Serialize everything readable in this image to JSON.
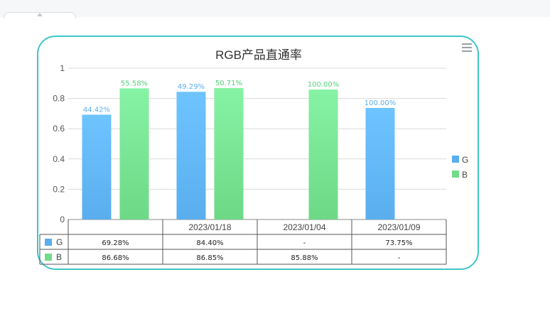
{
  "chart_data": {
    "type": "bar",
    "title": "RGB产品直通率",
    "xlabel": "",
    "ylabel": "",
    "ylim": [
      0,
      1
    ],
    "yticks": [
      "0",
      "0.2",
      "0.4",
      "0.6",
      "0.8",
      "1"
    ],
    "grid": true,
    "legend_position": "right",
    "categories": [
      "",
      "2023/01/18",
      "2023/01/04",
      "2023/01/09"
    ],
    "series": [
      {
        "name": "G",
        "color": "#5aaeee",
        "values": [
          0.6928,
          0.844,
          null,
          0.7375
        ],
        "bar_labels": [
          "44.42%",
          "49.29%",
          "",
          "100.00%"
        ],
        "table_values": [
          "69.28%",
          "84.40%",
          "-",
          "73.75%"
        ]
      },
      {
        "name": "B",
        "color": "#72dc8a",
        "values": [
          0.8668,
          0.8685,
          0.8588,
          null
        ],
        "bar_labels": [
          "55.58%",
          "50.71%",
          "100.00%",
          ""
        ],
        "table_values": [
          "86.68%",
          "86.85%",
          "85.88%",
          "-"
        ]
      }
    ]
  },
  "toolbar": {
    "menu_icon": "menu-icon"
  }
}
